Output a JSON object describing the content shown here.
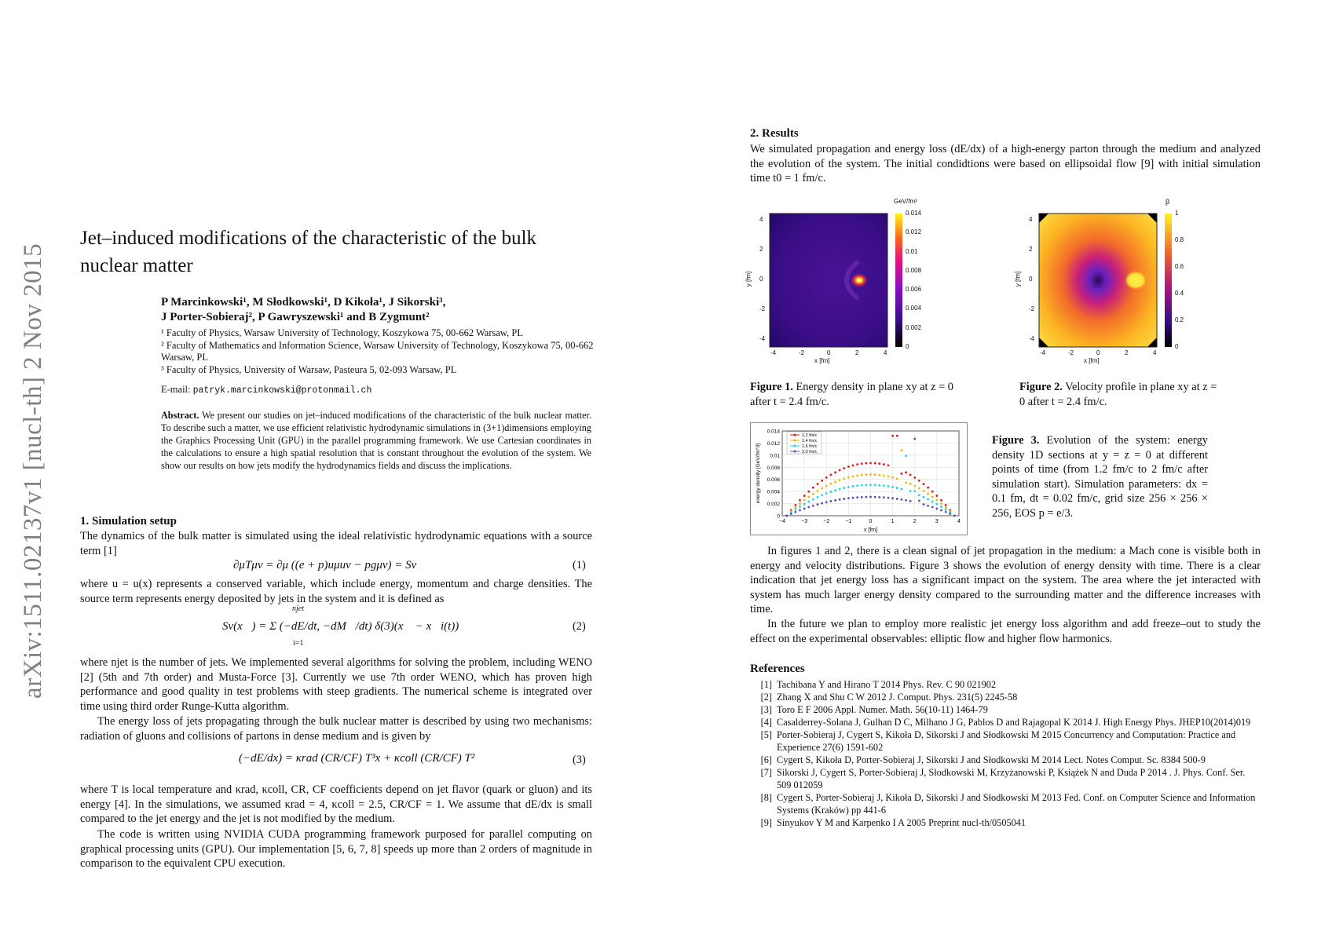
{
  "arxiv_id": "arXiv:1511.02137v1  [nucl-th]  2 Nov 2015",
  "title": "Jet–induced modifications of the characteristic of the bulk nuclear matter",
  "authors": {
    "line1": "P Marcinkowski¹, M Słodkowski¹, D Kikoła¹, J Sikorski³,",
    "line2": "J Porter-Sobieraj², P Gawryszewski¹ and B Zygmunt²"
  },
  "affiliations": [
    "¹ Faculty of Physics, Warsaw University of Technology, Koszykowa 75, 00-662 Warsaw, PL",
    "² Faculty of Mathematics and Information Science, Warsaw University of Technology, Koszykowa 75, 00-662 Warsaw, PL",
    "³ Faculty of Physics, University of Warsaw, Pasteura 5, 02-093 Warsaw, PL"
  ],
  "email_label": "E-mail:",
  "email": "patryk.marcinkowski@protonmail.ch",
  "abstract_label": "Abstract.",
  "abstract_text": "We present our studies on jet–induced modifications of the characteristic of the bulk nuclear matter. To describe such a matter, we use efficient relativistic hydrodynamic simulations in (3+1)dimensions employing the Graphics Processing Unit (GPU) in the parallel programming framework. We use Cartesian coordinates in the calculations to ensure a high spatial resolution that is constant throughout the evolution of the system. We show our results on how jets modify the hydrodynamics fields and discuss the implications.",
  "section1": {
    "heading": "1. Simulation setup",
    "p1": "The dynamics of the bulk matter is simulated using the ideal relativistic hydrodynamic equations with a source term [1]",
    "eq1": "∂μTμν = ∂μ ((e + p)uμuν − pgμν) = Sν",
    "eq1_num": "(1)",
    "p2": "where u = u(x) represents a conserved variable, which include energy, momentum and charge densities. The source term represents energy deposited by jets in the system and it is defined as",
    "eq2": "Sν(x⃗) = Σ (−dE/dt, −dM⃗/dt) δ(3)(x⃗ − x⃗i(t))",
    "eq2_sum_top": "njet",
    "eq2_sum_bottom": "i=1",
    "eq2_num": "(2)",
    "p3": "where njet is the number of jets. We implemented several algorithms for solving the problem, including WENO [2] (5th and 7th order) and Musta-Force [3]. Currently we use 7th order WENO, which has proven high performance and good quality in test problems with steep gradients. The numerical scheme is integrated over time using third order Runge-Kutta algorithm.",
    "p4": "The energy loss of jets propagating through the bulk nuclear matter is described by using two mechanisms: radiation of gluons and collisions of partons in dense medium and is given by",
    "eq3": "(−dE/dx) = κrad (CR/CF) T³x + κcoll (CR/CF) T²",
    "eq3_num": "(3)",
    "p5": "where T is local temperature and κrad, κcoll, CR, CF coefficients depend on jet flavor (quark or gluon) and its energy [4]. In the simulations, we assumed κrad = 4, κcoll = 2.5, CR/CF = 1. We assume that dE/dx is small compared to the jet energy and the jet is not modified by the medium.",
    "p6": "The code is written using NVIDIA CUDA programming framework purposed for parallel computing on graphical processing units (GPU). Our implementation [5, 6, 7, 8] speeds up more than 2 orders of magnitude in comparison to the equivalent CPU execution."
  },
  "section2": {
    "heading": "2. Results",
    "p1": "We simulated propagation and energy loss (dE/dx) of a high-energy parton through the medium and analyzed the evolution of the system. The initial condidtions were based on ellipsoidal flow [9] with initial simulation time t0 = 1 fm/c.",
    "p2": "In figures 1 and 2, there is a clean signal of jet propagation in the medium: a Mach cone is visible both in energy and velocity distributions. Figure 3 shows the evolution of energy density with time. There is a clear indication that jet energy loss has a significant impact on the system. The area where the jet interacted with system has much larger energy density compared to the surrounding matter and the difference increases with time.",
    "p3": "In the future we plan to employ more realistic jet energy loss algorithm and add freeze–out to study the effect on the experimental observables: elliptic flow and higher flow harmonics."
  },
  "figure1": {
    "cap_label": "Figure 1.",
    "cap_text": "Energy density in plane xy at z = 0 after t = 2.4 fm/c.",
    "unit": "GeV/fm³",
    "colorbar_ticks": [
      "0.014",
      "0.012",
      "0.01",
      "0.008",
      "0.006",
      "0.004",
      "0.002",
      "0"
    ],
    "xlabel": "x [fm]",
    "ylabel": "y [fm]",
    "xticks": [
      "-4",
      "-2",
      "0",
      "2",
      "4"
    ],
    "yticks": [
      "4",
      "2",
      "0",
      "-2",
      "-4"
    ]
  },
  "figure2": {
    "cap_label": "Figure 2.",
    "cap_text": "Velocity profile in plane xy at z = 0 after t = 2.4 fm/c.",
    "unit": "β",
    "colorbar_ticks": [
      "1",
      "0.8",
      "0.6",
      "0.4",
      "0.2",
      "0"
    ],
    "xlabel": "x [fm]",
    "ylabel": "y [fm]",
    "xticks": [
      "-4",
      "-2",
      "0",
      "2",
      "4"
    ],
    "yticks": [
      "4",
      "2",
      "0",
      "-2",
      "-4"
    ]
  },
  "figure3": {
    "cap_label": "Figure 3.",
    "cap_text": "Evolution of the system: energy density 1D sections at y = z = 0 at different points of time (from 1.2 fm/c to 2 fm/c after simulation start). Simulation parameters: dx = 0.1 fm, dt = 0.02 fm/c, grid size 256 × 256 × 256, EOS p = e/3."
  },
  "chart_data": {
    "type": "scatter",
    "xlabel": "x [fm]",
    "ylabel": "energy density [GeV/fm^3]",
    "xlim": [
      -4,
      4
    ],
    "ylim": [
      0,
      0.014
    ],
    "xticks": [
      -4,
      -3,
      -2,
      -1,
      0,
      1,
      2,
      3,
      4
    ],
    "yticks": [
      0,
      0.002,
      0.004,
      0.006,
      0.008,
      0.01,
      0.012,
      0.014
    ],
    "ytick_labels": [
      "0",
      "0.002",
      "0.004",
      "0.006",
      "0.008",
      "0.01",
      "0.012",
      "0.014"
    ],
    "grid": true,
    "legend": "top-left",
    "series": [
      {
        "name": "1.2 fm/c",
        "color": "#e3161b",
        "peak": 0.0087,
        "spike_x": 1.1,
        "spike_y": 0.0132
      },
      {
        "name": "1.4 fm/c",
        "color": "#f2b600",
        "peak": 0.0068,
        "spike_x": 1.35,
        "spike_y": 0.0108
      },
      {
        "name": "1.6 fm/c",
        "color": "#22d3e6",
        "peak": 0.0051,
        "spike_x": 1.6,
        "spike_y": 0.0099
      },
      {
        "name": "2.0 fm/c",
        "color": "#5b4fa8",
        "peak": 0.0031,
        "spike_x": 1.95,
        "spike_y": 0.0127
      }
    ]
  },
  "references_heading": "References",
  "references": [
    {
      "num": "[1]",
      "text": "Tachibana Y and Hirano T 2014 Phys. Rev. C 90 021902"
    },
    {
      "num": "[2]",
      "text": "Zhang X and Shu C W 2012 J. Comput. Phys. 231(5) 2245-58"
    },
    {
      "num": "[3]",
      "text": "Toro E F 2006 Appl. Numer. Math. 56(10-11) 1464-79"
    },
    {
      "num": "[4]",
      "text": "Casalderrey-Solana J, Gulhan D C, Milhano J G, Pablos D and Rajagopal K 2014 J. High Energy Phys. JHEP10(2014)019"
    },
    {
      "num": "[5]",
      "text": "Porter-Sobieraj J, Cygert S, Kikoła D, Sikorski J and Słodkowski M 2015 Concurrency and Computation: Practice and Experience 27(6) 1591-602"
    },
    {
      "num": "[6]",
      "text": "Cygert S, Kikoła D, Porter-Sobieraj J, Sikorski J and Słodkowski M 2014 Lect. Notes Comput. Sc. 8384 500-9"
    },
    {
      "num": "[7]",
      "text": "Sikorski J, Cygert S, Porter-Sobieraj J, Słodkowski M, Krzyżanowski P, Książek N and Duda P 2014 . J. Phys. Conf. Ser. 509 012059"
    },
    {
      "num": "[8]",
      "text": "Cygert S, Porter-Sobieraj J, Kikoła D, Sikorski J and Słodkowski M 2013 Fed. Conf. on Computer Science and Information Systems (Kraków) pp 441-6"
    },
    {
      "num": "[9]",
      "text": "Sinyukov Y M and Karpenko I A 2005 Preprint nucl-th/0505041"
    }
  ]
}
